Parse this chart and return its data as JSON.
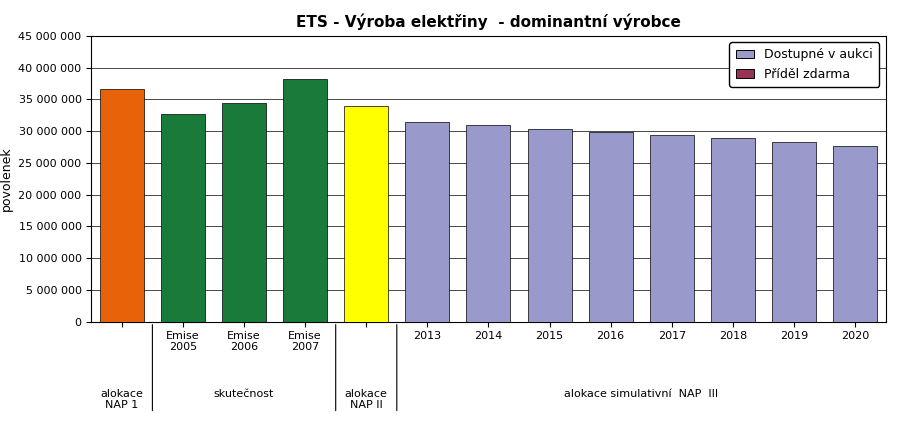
{
  "title": "ETS - Výroba elektřiny  - dominantní výrobce",
  "ylabel": "povolenek",
  "bars": [
    {
      "label": "",
      "value": 36700000,
      "color": "#E8620A",
      "group": "alokace NAP 1"
    },
    {
      "label": "Emise\n2005",
      "value": 32700000,
      "color": "#1A7A3A",
      "group": "skutečnost"
    },
    {
      "label": "Emise\n2006",
      "value": 34500000,
      "color": "#1A7A3A",
      "group": "skutečnost"
    },
    {
      "label": "Emise\n2007",
      "value": 38200000,
      "color": "#1A7A3A",
      "group": "skutečnost"
    },
    {
      "label": "",
      "value": 34000000,
      "color": "#FFFF00",
      "group": "alokace NAP II"
    },
    {
      "label": "2013",
      "value": 31500000,
      "color": "#9999CC",
      "group": "alokace simulativní NAP III"
    },
    {
      "label": "2014",
      "value": 31000000,
      "color": "#9999CC",
      "group": "alokace simulativní NAP III"
    },
    {
      "label": "2015",
      "value": 30400000,
      "color": "#9999CC",
      "group": "alokace simulativní NAP III"
    },
    {
      "label": "2016",
      "value": 29900000,
      "color": "#9999CC",
      "group": "alokace simulativní NAP III"
    },
    {
      "label": "2017",
      "value": 29400000,
      "color": "#9999CC",
      "group": "alokace simulativní NAP III"
    },
    {
      "label": "2018",
      "value": 28900000,
      "color": "#9999CC",
      "group": "alokace simulativní NAP III"
    },
    {
      "label": "2019",
      "value": 28300000,
      "color": "#9999CC",
      "group": "alokace simulativní NAP III"
    },
    {
      "label": "2020",
      "value": 27700000,
      "color": "#9999CC",
      "group": "alokace simulativní NAP III"
    }
  ],
  "group_label_text": {
    "alokace NAP 1": "alokace\nNAP 1",
    "skutečnost": "skutečnost",
    "alokace NAP II": "alokace\nNAP II",
    "alokace simulativní NAP III": "alokace simulativní  NAP  III"
  },
  "ylim": [
    0,
    45000000
  ],
  "yticks": [
    0,
    5000000,
    10000000,
    15000000,
    20000000,
    25000000,
    30000000,
    35000000,
    40000000,
    45000000
  ],
  "legend_entries": [
    {
      "label": "Dostupné v aukci",
      "color": "#9999CC"
    },
    {
      "label": "Příděl zdarma",
      "color": "#993355"
    }
  ],
  "background_color": "#FFFFFF",
  "bar_edge_color": "#000000",
  "title_fontsize": 11,
  "axis_label_fontsize": 9,
  "tick_fontsize": 8,
  "legend_fontsize": 9
}
